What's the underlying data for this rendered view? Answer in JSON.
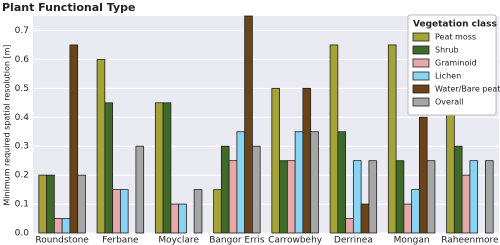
{
  "chart_data": {
    "type": "bar",
    "title": "Plant Functional Type",
    "ylabel": "Minimum required spatial resolution [m]",
    "categories": [
      "Roundstone",
      "Ferbane",
      "Moyclare",
      "Bangor Erris",
      "Carrowbehy",
      "Derrinea",
      "Mongan",
      "Raheenmore"
    ],
    "series": [
      {
        "name": "Peat moss",
        "color": "#a3a336",
        "values": [
          0.2,
          0.6,
          0.45,
          0.15,
          0.5,
          0.65,
          0.65,
          0.45
        ]
      },
      {
        "name": "Shrub",
        "color": "#3f6a28",
        "values": [
          0.2,
          0.45,
          0.45,
          0.3,
          0.25,
          0.35,
          0.25,
          0.3
        ]
      },
      {
        "name": "Graminoid",
        "color": "#e6a8a8",
        "values": [
          0.05,
          0.15,
          0.1,
          0.25,
          0.25,
          0.05,
          0.1,
          0.2
        ]
      },
      {
        "name": "Lichen",
        "color": "#88d4f2",
        "values": [
          0.05,
          0.15,
          0.1,
          0.35,
          0.35,
          0.25,
          0.15,
          0.25
        ]
      },
      {
        "name": "Water/Bare peat",
        "color": "#6b4319",
        "values": [
          0.65,
          0,
          0,
          0.75,
          0.5,
          0.1,
          0.4,
          0
        ]
      },
      {
        "name": "Overall",
        "color": "#a6a6a6",
        "values": [
          0.2,
          0.3,
          0.15,
          0.3,
          0.35,
          0.25,
          0.25,
          0.25
        ]
      }
    ],
    "legend_title": "Vegetation class",
    "legend": "upper right",
    "ylim": [
      0,
      0.75
    ],
    "yticks": [
      {
        "value": 0,
        "label": "0.0"
      },
      0.1,
      0.2,
      0.3,
      0.4,
      0.5,
      0.6,
      0.7
    ],
    "grid": true
  }
}
